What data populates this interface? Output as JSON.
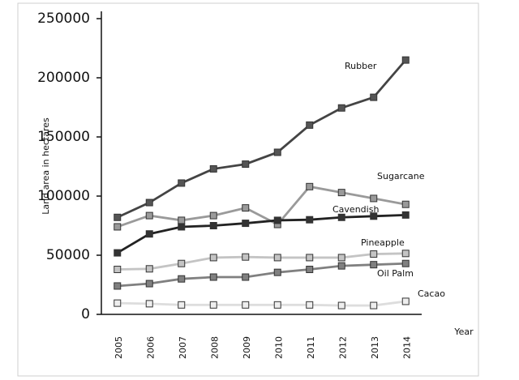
{
  "chart_data": {
    "type": "line",
    "y_label": "Land area in hectares",
    "x_label": "Year",
    "categories": [
      "2005",
      "2006",
      "2007",
      "2008",
      "2009",
      "2010",
      "2011",
      "2012",
      "2013",
      "2014"
    ],
    "ylim": [
      0,
      250000
    ],
    "yticks": [
      0,
      50000,
      100000,
      150000,
      200000,
      250000
    ],
    "series": [
      {
        "name": "Rubber",
        "color": "#444444",
        "marker": "#555555",
        "values": [
          82000,
          94500,
          111000,
          123000,
          127000,
          137000,
          160000,
          174500,
          183500,
          215000
        ]
      },
      {
        "name": "Sugarcane",
        "color": "#9a9a9a",
        "marker": "#9a9a9a",
        "values": [
          74000,
          83500,
          79500,
          83500,
          90000,
          76000,
          108000,
          103000,
          98000,
          93000
        ]
      },
      {
        "name": "Cavendish",
        "color": "#222222",
        "marker": "#333333",
        "values": [
          52000,
          68000,
          74000,
          75000,
          77000,
          79500,
          80000,
          82000,
          83000,
          84000
        ]
      },
      {
        "name": "Pineapple",
        "color": "#c4c4c4",
        "marker": "#c4c4c4",
        "values": [
          38000,
          38500,
          43000,
          48000,
          48500,
          48000,
          48000,
          48000,
          51000,
          51500
        ]
      },
      {
        "name": "Oil Palm",
        "color": "#808080",
        "marker": "#808080",
        "values": [
          24000,
          26000,
          30000,
          31500,
          31500,
          35500,
          38000,
          41000,
          42000,
          43000
        ]
      },
      {
        "name": "Cacao",
        "color": "#dddddd",
        "marker": "#eeeeee",
        "values": [
          9500,
          9000,
          8000,
          8000,
          8000,
          8000,
          8000,
          7500,
          7500,
          11000
        ]
      }
    ]
  }
}
